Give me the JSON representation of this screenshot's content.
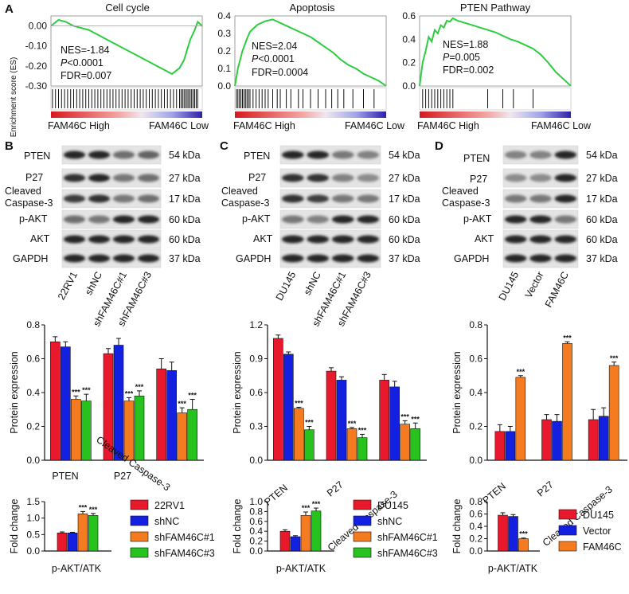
{
  "colors": {
    "es_line": "#2ecc40",
    "heat_high": "#d7191c",
    "heat_low": "#2c1fa8",
    "red": "#e8192c",
    "blue": "#1420e0",
    "orange": "#f47b20",
    "green": "#27c21e",
    "band": "#2a2a2a"
  },
  "gsea": {
    "panel": "A",
    "ylabel": "Enrichment score (ES)",
    "high_label": "FAM46C High",
    "low_label": "FAM46C Low",
    "plots": [
      {
        "title": "Cell cycle",
        "nes": "NES=-1.84",
        "p_prefix": "P",
        "p_rest": "<0.0001",
        "fdr": "FDR=0.007",
        "yticks": [
          "0.00",
          "-0.10",
          "-0.20",
          "-0.30"
        ],
        "ylim": [
          -0.3,
          0.05
        ],
        "x": [
          0,
          0.05,
          0.1,
          0.15,
          0.2,
          0.25,
          0.3,
          0.35,
          0.4,
          0.45,
          0.5,
          0.55,
          0.6,
          0.65,
          0.7,
          0.75,
          0.8,
          0.85,
          0.88,
          0.9,
          0.92,
          0.95,
          0.97,
          1.0
        ],
        "es": [
          0.0,
          0.03,
          0.02,
          0.0,
          -0.01,
          -0.02,
          -0.04,
          -0.06,
          -0.08,
          -0.1,
          -0.12,
          -0.14,
          -0.16,
          -0.18,
          -0.2,
          -0.22,
          -0.24,
          -0.21,
          -0.17,
          -0.12,
          -0.07,
          -0.02,
          0.02,
          0.0
        ]
      },
      {
        "title": "Apoptosis",
        "nes": "NES=2.04",
        "p_prefix": "P",
        "p_rest": "<0.0001",
        "fdr": "FDR=0.0004",
        "yticks": [
          "0.4",
          "0.3",
          "0.2",
          "0.1",
          "0.0"
        ],
        "ylim": [
          0,
          0.4
        ],
        "x": [
          0,
          0.02,
          0.05,
          0.08,
          0.1,
          0.15,
          0.2,
          0.25,
          0.3,
          0.35,
          0.4,
          0.45,
          0.5,
          0.55,
          0.6,
          0.65,
          0.7,
          0.75,
          0.8,
          0.85,
          0.9,
          0.95,
          1.0
        ],
        "es": [
          0.0,
          0.1,
          0.2,
          0.27,
          0.31,
          0.35,
          0.37,
          0.38,
          0.36,
          0.34,
          0.32,
          0.3,
          0.28,
          0.25,
          0.22,
          0.19,
          0.15,
          0.12,
          0.1,
          0.07,
          0.05,
          0.03,
          0.0
        ]
      },
      {
        "title": "PTEN Pathway",
        "nes": "NES=1.88",
        "p_prefix": "P",
        "p_rest": "=0.005",
        "fdr": "FDR=0.002",
        "yticks": [
          "0.6",
          "0.4",
          "0.2",
          "0.0"
        ],
        "ylim": [
          0,
          0.6
        ],
        "x": [
          0,
          0.02,
          0.04,
          0.06,
          0.08,
          0.1,
          0.12,
          0.14,
          0.16,
          0.18,
          0.2,
          0.22,
          0.25,
          0.3,
          0.35,
          0.4,
          0.45,
          0.5,
          0.55,
          0.6,
          0.65,
          0.7,
          0.75,
          0.8,
          0.85,
          0.9,
          0.95,
          1.0
        ],
        "es": [
          0.0,
          0.2,
          0.3,
          0.42,
          0.38,
          0.48,
          0.45,
          0.52,
          0.5,
          0.56,
          0.55,
          0.58,
          0.56,
          0.54,
          0.52,
          0.5,
          0.48,
          0.46,
          0.43,
          0.4,
          0.38,
          0.35,
          0.32,
          0.27,
          0.2,
          0.12,
          0.06,
          0.0
        ]
      }
    ]
  },
  "blots": [
    {
      "panel": "B",
      "labels": [
        "PTEN",
        "P27",
        "Cleaved",
        "Caspase-3",
        "p-AKT",
        "AKT",
        "GAPDH"
      ],
      "kda": [
        "54 kDa",
        "27 kDa",
        "17 kDa",
        "60 kDa",
        "60 kDa",
        "37 kDa"
      ],
      "lanes": [
        "22RV1",
        "shNC",
        "shFAM46C#1",
        "shFAM46C#3"
      ],
      "intensity": [
        [
          0.9,
          0.9,
          0.55,
          0.6
        ],
        [
          0.85,
          0.9,
          0.5,
          0.55
        ],
        [
          0.8,
          0.85,
          0.5,
          0.55
        ],
        [
          0.55,
          0.5,
          0.9,
          0.9
        ],
        [
          0.9,
          0.9,
          0.9,
          0.9
        ],
        [
          0.9,
          0.9,
          0.9,
          0.9
        ]
      ]
    },
    {
      "panel": "C",
      "labels": [
        "PTEN",
        "P27",
        "Cleaved",
        "Caspase-3",
        "p-AKT",
        "AKT",
        "GAPDH"
      ],
      "kda": [
        "54 kDa",
        "27 kDa",
        "17 kDa",
        "60 kDa",
        "60 kDa",
        "37 kDa"
      ],
      "lanes": [
        "DU145",
        "shNC",
        "shFAM46C#1",
        "shFAM46C#3"
      ],
      "intensity": [
        [
          0.9,
          0.9,
          0.5,
          0.45
        ],
        [
          0.85,
          0.85,
          0.45,
          0.4
        ],
        [
          0.85,
          0.8,
          0.5,
          0.5
        ],
        [
          0.5,
          0.45,
          0.9,
          0.9
        ],
        [
          0.9,
          0.9,
          0.9,
          0.9
        ],
        [
          0.9,
          0.9,
          0.9,
          0.9
        ]
      ]
    },
    {
      "panel": "D",
      "labels": [
        "PTEN",
        "P27",
        "Cleaved",
        "Caspase-3",
        "p-AKT",
        "AKT",
        "GAPDH"
      ],
      "kda": [
        "54 kDa",
        "27 kDa",
        "17 kDa",
        "60 kDa",
        "60 kDa",
        "37 kDa"
      ],
      "lanes": [
        "DU145",
        "Vector",
        "FAM46C"
      ],
      "intensity": [
        [
          0.45,
          0.45,
          0.9
        ],
        [
          0.4,
          0.4,
          0.9
        ],
        [
          0.5,
          0.5,
          0.9
        ],
        [
          0.9,
          0.9,
          0.5
        ],
        [
          0.9,
          0.9,
          0.9
        ],
        [
          0.9,
          0.9,
          0.9
        ]
      ]
    }
  ],
  "chart_data": [
    {
      "type": "bar",
      "ylabel": "Protein expression",
      "categories": [
        "PTEN",
        "P27",
        "Cleaved Caspase-3"
      ],
      "ylim": [
        0,
        0.8
      ],
      "yticks": [
        "0.0",
        "0.2",
        "0.4",
        "0.6",
        "0.8"
      ],
      "series": [
        {
          "name": "22RV1",
          "values": [
            0.7,
            0.63,
            0.54
          ],
          "errors": [
            0.03,
            0.03,
            0.06
          ],
          "stars": [
            "",
            "",
            ""
          ]
        },
        {
          "name": "shNC",
          "values": [
            0.67,
            0.68,
            0.53
          ],
          "errors": [
            0.03,
            0.04,
            0.05
          ],
          "stars": [
            "",
            "",
            ""
          ]
        },
        {
          "name": "shFAM46C#1",
          "values": [
            0.36,
            0.35,
            0.28
          ],
          "errors": [
            0.02,
            0.02,
            0.03
          ],
          "stars": [
            "***",
            "***",
            "***"
          ]
        },
        {
          "name": "shFAM46C#3",
          "values": [
            0.35,
            0.38,
            0.3
          ],
          "errors": [
            0.04,
            0.03,
            0.06
          ],
          "stars": [
            "***",
            "***",
            "***"
          ]
        }
      ]
    },
    {
      "type": "bar",
      "ylabel": "Protein expression",
      "categories": [
        "PTEN",
        "P27",
        "Cleaved Caspase-3"
      ],
      "ylim": [
        0,
        1.2
      ],
      "yticks": [
        "0.0",
        "0.3",
        "0.6",
        "0.9",
        "1.2"
      ],
      "series": [
        {
          "name": "DU145",
          "values": [
            1.08,
            0.79,
            0.71
          ],
          "errors": [
            0.03,
            0.03,
            0.05
          ],
          "stars": [
            "",
            "",
            ""
          ]
        },
        {
          "name": "shNC",
          "values": [
            0.94,
            0.71,
            0.65
          ],
          "errors": [
            0.02,
            0.03,
            0.05
          ],
          "stars": [
            "",
            "",
            ""
          ]
        },
        {
          "name": "shFAM46C#1",
          "values": [
            0.46,
            0.28,
            0.32
          ],
          "errors": [
            0.01,
            0.01,
            0.03
          ],
          "stars": [
            "***",
            "***",
            "***"
          ]
        },
        {
          "name": "shFAM46C#3",
          "values": [
            0.27,
            0.2,
            0.28
          ],
          "errors": [
            0.03,
            0.03,
            0.05
          ],
          "stars": [
            "***",
            "***",
            "***"
          ]
        }
      ]
    },
    {
      "type": "bar",
      "ylabel": "Protein expression",
      "categories": [
        "PTEN",
        "P27",
        "Cleaved Caspase-3"
      ],
      "ylim": [
        0,
        0.8
      ],
      "yticks": [
        "0.0",
        "0.2",
        "0.4",
        "0.6",
        "0.8"
      ],
      "series": [
        {
          "name": "DU145",
          "values": [
            0.17,
            0.24,
            0.24
          ],
          "errors": [
            0.04,
            0.03,
            0.06
          ],
          "stars": [
            "",
            "",
            ""
          ]
        },
        {
          "name": "Vector",
          "values": [
            0.17,
            0.23,
            0.26
          ],
          "errors": [
            0.03,
            0.04,
            0.05
          ],
          "stars": [
            "",
            "",
            ""
          ]
        },
        {
          "name": "FAM46C",
          "values": [
            0.49,
            0.69,
            0.56
          ],
          "errors": [
            0.01,
            0.01,
            0.02
          ],
          "stars": [
            "***",
            "***",
            "***"
          ]
        }
      ]
    },
    {
      "type": "bar",
      "ylabel": "Fold change",
      "categories": [
        "p-AKT/ATK"
      ],
      "ylim": [
        0,
        1.5
      ],
      "yticks": [
        "0.0",
        "0.5",
        "1.0",
        "1.5"
      ],
      "series": [
        {
          "name": "22RV1",
          "values": [
            0.55
          ],
          "errors": [
            0.03
          ],
          "stars": [
            ""
          ]
        },
        {
          "name": "shNC",
          "values": [
            0.55
          ],
          "errors": [
            0.02
          ],
          "stars": [
            ""
          ]
        },
        {
          "name": "shFAM46C#1",
          "values": [
            1.13
          ],
          "errors": [
            0.07
          ],
          "stars": [
            "***"
          ]
        },
        {
          "name": "shFAM46C#3",
          "values": [
            1.08
          ],
          "errors": [
            0.06
          ],
          "stars": [
            "***"
          ]
        }
      ]
    },
    {
      "type": "bar",
      "ylabel": "Fold change",
      "categories": [
        "p-AKT/ATK"
      ],
      "ylim": [
        0,
        1.0
      ],
      "yticks": [
        "0.0",
        "0.2",
        "0.4",
        "0.6",
        "0.8",
        "1.0"
      ],
      "series": [
        {
          "name": "DU145",
          "values": [
            0.4
          ],
          "errors": [
            0.03
          ],
          "stars": [
            ""
          ]
        },
        {
          "name": "shNC",
          "values": [
            0.29
          ],
          "errors": [
            0.02
          ],
          "stars": [
            ""
          ]
        },
        {
          "name": "shFAM46C#1",
          "values": [
            0.72
          ],
          "errors": [
            0.07
          ],
          "stars": [
            "***"
          ]
        },
        {
          "name": "shFAM46C#3",
          "values": [
            0.81
          ],
          "errors": [
            0.06
          ],
          "stars": [
            "***"
          ]
        }
      ]
    },
    {
      "type": "bar",
      "ylabel": "Fold change",
      "categories": [
        "p-AKT/ATK"
      ],
      "ylim": [
        0,
        0.8
      ],
      "yticks": [
        "0.0",
        "0.2",
        "0.4",
        "0.6",
        "0.8"
      ],
      "series": [
        {
          "name": "DU145",
          "values": [
            0.58
          ],
          "errors": [
            0.04
          ],
          "stars": [
            ""
          ]
        },
        {
          "name": "Vector",
          "values": [
            0.56
          ],
          "errors": [
            0.03
          ],
          "stars": [
            ""
          ]
        },
        {
          "name": "FAM46C",
          "values": [
            0.2
          ],
          "errors": [
            0.01
          ],
          "stars": [
            "***"
          ]
        }
      ]
    }
  ]
}
